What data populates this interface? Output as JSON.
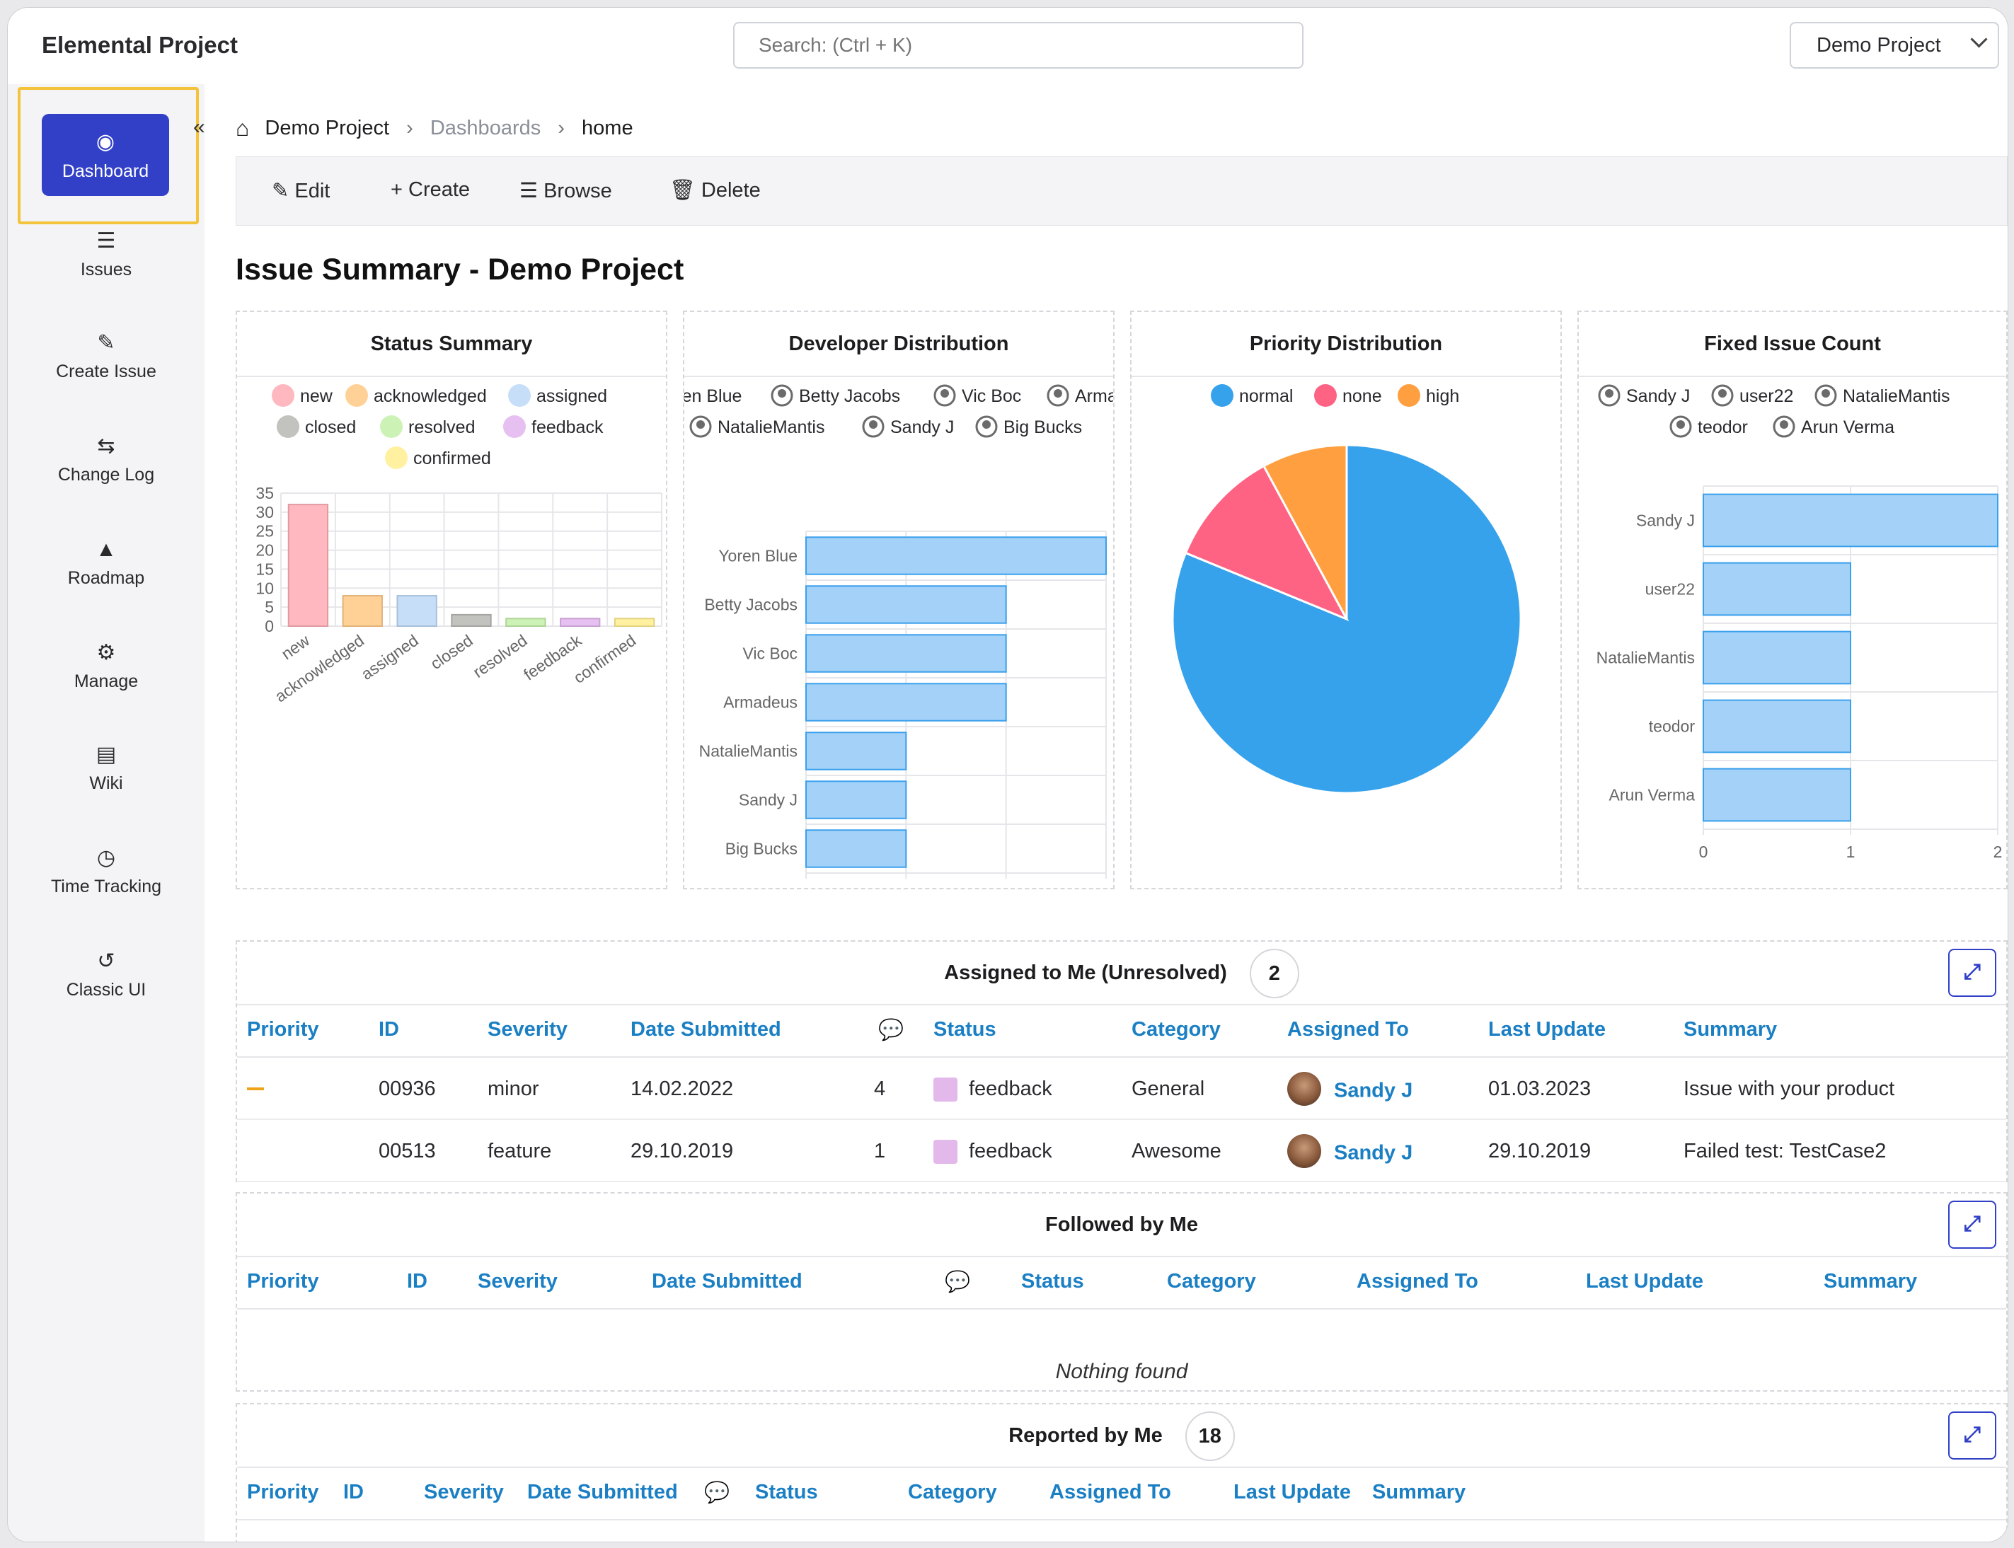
{
  "app": {
    "title": "Elemental Project"
  },
  "search": {
    "placeholder": "Search: (Ctrl + K)"
  },
  "project_select": {
    "value": "Demo Project"
  },
  "sidebar": {
    "items": [
      {
        "label": "Dashboard",
        "icon": "dashboard-icon",
        "active": true
      },
      {
        "label": "Issues",
        "icon": "list-icon"
      },
      {
        "label": "Create Issue",
        "icon": "edit-icon"
      },
      {
        "label": "Change Log",
        "icon": "changelog-icon"
      },
      {
        "label": "Roadmap",
        "icon": "road-icon"
      },
      {
        "label": "Manage",
        "icon": "gears-icon"
      },
      {
        "label": "Wiki",
        "icon": "document-icon"
      },
      {
        "label": "Time Tracking",
        "icon": "clock-icon"
      },
      {
        "label": "Classic UI",
        "icon": "history-icon"
      }
    ]
  },
  "breadcrumb": {
    "home": "Demo Project",
    "section": "Dashboards",
    "current": "home"
  },
  "toolbar": {
    "edit": "Edit",
    "create": "Create",
    "browse": "Browse",
    "delete": "Delete"
  },
  "page": {
    "title": "Issue Summary - Demo Project"
  },
  "colors": {
    "accent": "#3140c7",
    "link": "#1b7fc4",
    "focus": "#f3c33b",
    "bar_blue": "#a3d1f7",
    "bar_blue_stroke": "#3aa0ec"
  },
  "chart_data": [
    {
      "type": "bar",
      "title": "Status Summary",
      "legend": [
        "new",
        "acknowledged",
        "assigned",
        "closed",
        "resolved",
        "feedback",
        "confirmed"
      ],
      "categories": [
        "new",
        "acknowledged",
        "assigned",
        "closed",
        "resolved",
        "feedback",
        "confirmed"
      ],
      "values": [
        32,
        8,
        8,
        3,
        2,
        2,
        2
      ],
      "colors": [
        "#ffb8bf",
        "#ffd197",
        "#c6def8",
        "#c2c2bf",
        "#cdf2b6",
        "#e6c0f0",
        "#fff1a0"
      ],
      "yticks": [
        "0",
        "5",
        "10",
        "15",
        "20",
        "25",
        "30",
        "35"
      ],
      "ylim": [
        0,
        35
      ],
      "legend_position": "top",
      "grid": true
    },
    {
      "type": "bar",
      "orientation": "horizontal",
      "title": "Developer Distribution",
      "legend": [
        "Yoren Blue",
        "Betty Jacobs",
        "Vic Boc",
        "Armadeus",
        "NatalieMantis",
        "Sandy J",
        "Big Bucks"
      ],
      "categories": [
        "Yoren Blue",
        "Betty Jacobs",
        "Vic Boc",
        "Armadeus",
        "NatalieMantis",
        "Sandy J",
        "Big Bucks"
      ],
      "values": [
        3,
        2,
        2,
        2,
        1,
        1,
        1
      ],
      "xticks": [
        "0",
        "1",
        "2",
        "3"
      ],
      "xlim": [
        0,
        3
      ],
      "legend_position": "top",
      "grid": true
    },
    {
      "type": "pie",
      "title": "Priority Distribution",
      "legend": [
        "normal",
        "none",
        "high"
      ],
      "labels": [
        "normal",
        "none",
        "high"
      ],
      "values": [
        0.812,
        0.109,
        0.079
      ],
      "colors": [
        "#36a2eb",
        "#ff6384",
        "#ff9f40"
      ],
      "legend_position": "top"
    },
    {
      "type": "bar",
      "orientation": "horizontal",
      "title": "Fixed Issue Count",
      "legend": [
        "Sandy J",
        "user22",
        "NatalieMantis",
        "teodor",
        "Arun Verma"
      ],
      "categories": [
        "Sandy J",
        "user22",
        "NatalieMantis",
        "teodor",
        "Arun Verma"
      ],
      "values": [
        2,
        1,
        1,
        1,
        1
      ],
      "xticks": [
        "0",
        "1",
        "2"
      ],
      "xlim": [
        0,
        2
      ],
      "legend_position": "top",
      "grid": true
    }
  ],
  "assigned": {
    "title": "Assigned to Me (Unresolved)",
    "count": "2",
    "columns": [
      "Priority",
      "ID",
      "Severity",
      "Date Submitted",
      "Status",
      "Category",
      "Assigned To",
      "Last Update",
      "Summary"
    ],
    "rows": [
      {
        "id": "00936",
        "severity": "minor",
        "date": "14.02.2022",
        "notes": "4",
        "status": "feedback",
        "category": "General",
        "assigned": "Sandy J",
        "updated": "01.03.2023",
        "summary": "Issue with your product"
      },
      {
        "id": "00513",
        "severity": "feature",
        "date": "29.10.2019",
        "notes": "1",
        "status": "feedback",
        "category": "Awesome",
        "assigned": "Sandy J",
        "updated": "29.10.2019",
        "summary": "Failed test: TestCase2"
      }
    ]
  },
  "followed": {
    "title": "Followed by Me",
    "columns": [
      "Priority",
      "ID",
      "Severity",
      "Date Submitted",
      "Status",
      "Category",
      "Assigned To",
      "Last Update",
      "Summary"
    ],
    "empty": "Nothing found"
  },
  "reported": {
    "title": "Reported by Me",
    "count": "18",
    "columns": [
      "Priority",
      "ID",
      "Severity",
      "Date Submitted",
      "Status",
      "Category",
      "Assigned To",
      "Last Update",
      "Summary"
    ]
  }
}
